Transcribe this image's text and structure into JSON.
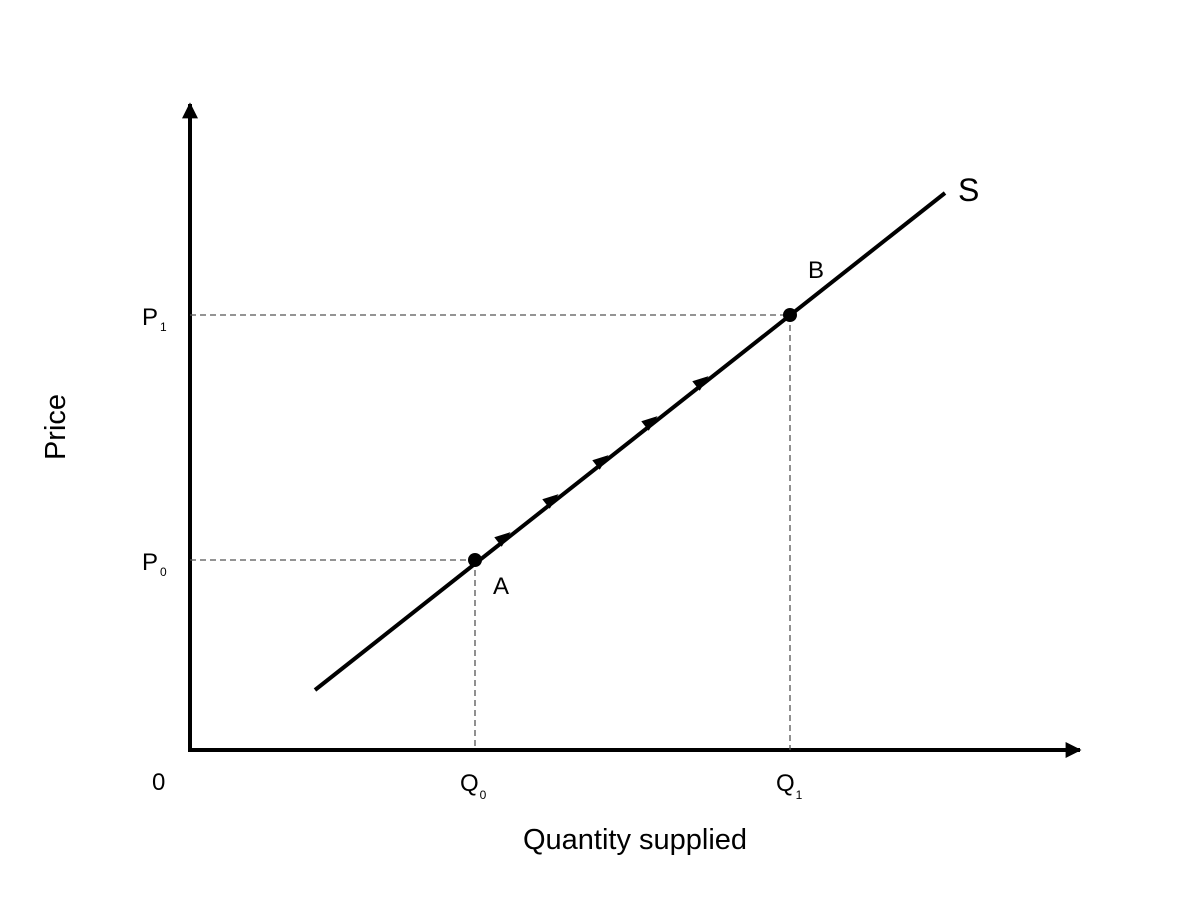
{
  "axes": {
    "y_label": "Price",
    "x_label": "Quantity supplied",
    "origin": "0"
  },
  "ticks": {
    "p1": {
      "main": "P",
      "sub": "1"
    },
    "p0": {
      "main": "P",
      "sub": "0"
    },
    "q0": {
      "main": "Q",
      "sub": "0"
    },
    "q1": {
      "main": "Q",
      "sub": "1"
    }
  },
  "points": {
    "a": "A",
    "b": "B"
  },
  "curve_label": "S"
}
